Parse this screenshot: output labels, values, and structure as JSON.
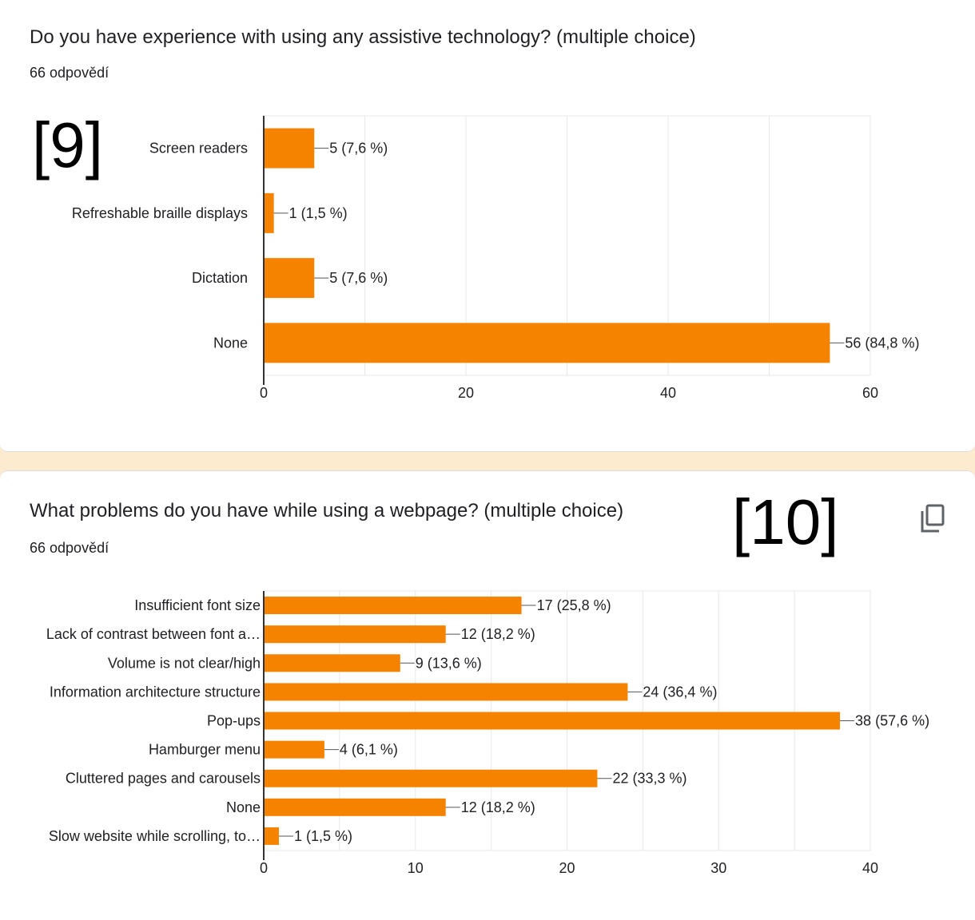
{
  "charts": [
    {
      "title": "Do you have experience with using any assistive technology? (multiple choice)",
      "responses": "66 odpovědí",
      "marker": "[9]"
    },
    {
      "title": "What problems do you have while using a webpage? (multiple choice)",
      "responses": "66 odpovědí",
      "marker": "[10]",
      "copy_icon": "copy-icon"
    }
  ],
  "colors": {
    "bar": "#f68300",
    "grid": "#e8e8e8",
    "axis": "#333333",
    "text": "#202124",
    "bg": "#fdebd0"
  },
  "chart_data": [
    {
      "type": "bar",
      "orientation": "horizontal",
      "title": "Do you have experience with using any assistive technology? (multiple choice)",
      "categories": [
        "Screen readers",
        "Refreshable braille displays",
        "Dictation",
        "None"
      ],
      "values": [
        5,
        1,
        5,
        56
      ],
      "data_labels": [
        "5 (7,6 %)",
        "1 (1,5 %)",
        "5 (7,6 %)",
        "56 (84,8 %)"
      ],
      "xlim": [
        0,
        60
      ],
      "xticks": [
        0,
        20,
        40,
        60
      ],
      "grid": true,
      "legend": "none"
    },
    {
      "type": "bar",
      "orientation": "horizontal",
      "title": "What problems do you have while using a webpage? (multiple choice)",
      "categories": [
        "Insufficient font size",
        "Lack of contrast between font a…",
        "Volume is not clear/high",
        "Information architecture structure",
        "Pop-ups",
        "Hamburger menu",
        "Cluttered pages and carousels",
        "None",
        "Slow website while scrolling, to…"
      ],
      "values": [
        17,
        12,
        9,
        24,
        38,
        4,
        22,
        12,
        1
      ],
      "data_labels": [
        "17 (25,8 %)",
        "12 (18,2 %)",
        "9 (13,6 %)",
        "24 (36,4 %)",
        "38 (57,6 %)",
        "4 (6,1 %)",
        "22 (33,3 %)",
        "12 (18,2 %)",
        "1 (1,5 %)"
      ],
      "xlim": [
        0,
        40
      ],
      "xticks": [
        0,
        10,
        20,
        30,
        40
      ],
      "grid": true,
      "legend": "none"
    }
  ]
}
